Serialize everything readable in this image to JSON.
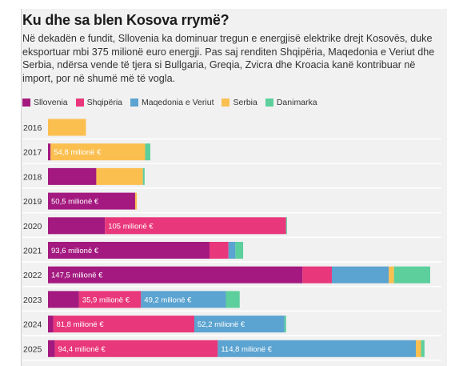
{
  "title": "Ku dhe sa blen Kosova rrymë?",
  "subtitle": "Në dekadën e fundit, Sllovenia ka dominuar tregun e energjisë elektrike drejt Kosovës, duke eksportuar mbi 375 milionë euro energji. Pas saj renditen Shqipëria, Maqedonia e Veriut dhe Serbia, ndërsa vende të tjera si Bullgaria, Greqia, Zvicra dhe Kroacia kanë kontribuar në import, por në shumë më të vogla.",
  "chart_data": {
    "type": "bar",
    "orientation": "horizontal",
    "stacked": true,
    "unit": "milionë €",
    "categories": [
      "2016",
      "2017",
      "2018",
      "2019",
      "2020",
      "2021",
      "2022",
      "2023",
      "2024",
      "2025"
    ],
    "xlim": [
      0,
      228
    ],
    "series": [
      {
        "name": "Sllovenia",
        "color": "#a3197f",
        "values": [
          0,
          1.5,
          28,
          50.5,
          33,
          93.6,
          147.5,
          18,
          3,
          4
        ]
      },
      {
        "name": "Shqipëria",
        "color": "#e8377a",
        "values": [
          0,
          0,
          0,
          0,
          105,
          11,
          17,
          35.9,
          81.8,
          94.4
        ]
      },
      {
        "name": "Maqedonia e Veriut",
        "color": "#5ba3d0",
        "values": [
          0,
          0,
          0,
          0,
          0,
          4,
          33,
          49.2,
          52.2,
          114.8
        ]
      },
      {
        "name": "Serbia",
        "color": "#fbbf4f",
        "values": [
          22,
          54.8,
          27,
          1,
          0,
          0,
          3,
          0,
          0,
          3
        ]
      },
      {
        "name": "Danimarka",
        "color": "#5ccf9d",
        "values": [
          0,
          3,
          1,
          0,
          0.5,
          4.5,
          21,
          8,
          1,
          2
        ]
      }
    ],
    "data_labels": [
      {
        "category": "2017",
        "series": "Serbia",
        "text": "54,8 milionë €"
      },
      {
        "category": "2019",
        "series": "Sllovenia",
        "text": "50,5 milionë €"
      },
      {
        "category": "2020",
        "series": "Shqipëria",
        "text": "105 milionë €"
      },
      {
        "category": "2021",
        "series": "Sllovenia",
        "text": "93,6 milionë €"
      },
      {
        "category": "2022",
        "series": "Sllovenia",
        "text": "147,5 milionë €"
      },
      {
        "category": "2023",
        "series": "Shqipëria",
        "text": "35,9 milionë €"
      },
      {
        "category": "2023",
        "series": "Maqedonia e Veriut",
        "text": "49,2 milionë €"
      },
      {
        "category": "2024",
        "series": "Shqipëria",
        "text": "81,8 milionë €"
      },
      {
        "category": "2024",
        "series": "Maqedonia e Veriut",
        "text": "52,2 milionë €"
      },
      {
        "category": "2025",
        "series": "Shqipëria",
        "text": "94,4 milionë €"
      },
      {
        "category": "2025",
        "series": "Maqedonia e Veriut",
        "text": "114,8 milionë €"
      }
    ],
    "legend_position": "top-left",
    "grid": false
  }
}
